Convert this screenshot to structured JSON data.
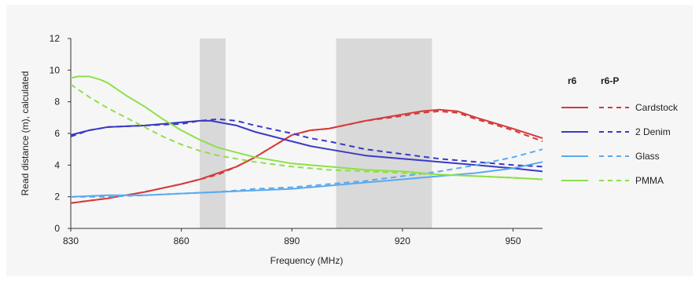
{
  "chart_data": {
    "type": "line",
    "title": "",
    "xlabel": "Frequency (MHz)",
    "ylabel": "Read distance (m), calculated",
    "xlim": [
      830,
      958
    ],
    "ylim": [
      0,
      12
    ],
    "xticks": [
      830,
      860,
      890,
      920,
      950
    ],
    "yticks": [
      0,
      2,
      4,
      6,
      8,
      10,
      12
    ],
    "grid": false,
    "shaded_bands": [
      [
        865,
        872
      ],
      [
        902,
        928
      ]
    ],
    "legend": {
      "placement": "right",
      "solid_header": "r6",
      "dashed_header": "r6-P"
    },
    "series": [
      {
        "name": "Cardstock",
        "color": "#d63a3a",
        "r6": {
          "x": [
            830,
            840,
            850,
            860,
            865,
            870,
            875,
            880,
            885,
            890,
            895,
            900,
            910,
            920,
            925,
            930,
            935,
            940,
            950,
            958
          ],
          "y": [
            1.6,
            1.9,
            2.3,
            2.8,
            3.1,
            3.5,
            3.9,
            4.5,
            5.2,
            5.9,
            6.2,
            6.3,
            6.8,
            7.2,
            7.4,
            7.5,
            7.4,
            7.0,
            6.3,
            5.7
          ]
        },
        "r6_P": {
          "x": [
            830,
            840,
            850,
            860,
            865,
            870,
            875,
            880,
            885,
            890,
            895,
            900,
            910,
            920,
            925,
            930,
            935,
            940,
            950,
            958
          ],
          "y": [
            1.6,
            1.9,
            2.3,
            2.8,
            3.1,
            3.4,
            3.9,
            4.5,
            5.2,
            5.9,
            6.2,
            6.3,
            6.8,
            7.1,
            7.3,
            7.4,
            7.3,
            6.9,
            6.2,
            5.5
          ]
        }
      },
      {
        "name": "2 Denim",
        "color": "#3a3ac6",
        "r6": {
          "x": [
            830,
            835,
            840,
            850,
            860,
            865,
            868,
            875,
            880,
            890,
            895,
            900,
            910,
            920,
            930,
            940,
            950,
            958
          ],
          "y": [
            5.9,
            6.2,
            6.4,
            6.5,
            6.7,
            6.8,
            6.8,
            6.5,
            6.1,
            5.5,
            5.2,
            5.0,
            4.6,
            4.4,
            4.2,
            4.0,
            3.8,
            3.6
          ]
        },
        "r6_P": {
          "x": [
            830,
            835,
            840,
            850,
            860,
            865,
            870,
            875,
            880,
            890,
            895,
            900,
            910,
            920,
            930,
            940,
            950,
            958
          ],
          "y": [
            5.8,
            6.2,
            6.4,
            6.5,
            6.6,
            6.8,
            6.9,
            6.8,
            6.5,
            6.0,
            5.7,
            5.5,
            5.0,
            4.7,
            4.4,
            4.2,
            4.0,
            3.9
          ]
        }
      },
      {
        "name": "Glass",
        "color": "#5aaaf0",
        "r6": {
          "x": [
            830,
            840,
            850,
            860,
            870,
            880,
            890,
            900,
            910,
            920,
            930,
            940,
            950,
            958
          ],
          "y": [
            2.0,
            2.1,
            2.1,
            2.2,
            2.3,
            2.4,
            2.5,
            2.7,
            2.9,
            3.1,
            3.3,
            3.5,
            3.8,
            4.2
          ]
        },
        "r6_P": {
          "x": [
            830,
            840,
            850,
            860,
            870,
            880,
            890,
            900,
            910,
            920,
            930,
            940,
            950,
            958
          ],
          "y": [
            2.0,
            2.0,
            2.1,
            2.2,
            2.3,
            2.5,
            2.6,
            2.8,
            3.0,
            3.3,
            3.6,
            4.0,
            4.5,
            5.0
          ]
        }
      },
      {
        "name": "PMMA",
        "color": "#8ee048",
        "r6": {
          "x": [
            830,
            832,
            835,
            838,
            840,
            845,
            850,
            855,
            860,
            865,
            870,
            880,
            890,
            900,
            910,
            920,
            930,
            940,
            950,
            958
          ],
          "y": [
            9.5,
            9.6,
            9.6,
            9.4,
            9.2,
            8.4,
            7.7,
            6.9,
            6.2,
            5.6,
            5.1,
            4.5,
            4.1,
            3.9,
            3.7,
            3.6,
            3.4,
            3.3,
            3.2,
            3.1
          ]
        },
        "r6_P": {
          "x": [
            830,
            835,
            840,
            845,
            850,
            855,
            860,
            865,
            870,
            880,
            890,
            900,
            910,
            920,
            930,
            940,
            950,
            958
          ],
          "y": [
            9.1,
            8.3,
            7.6,
            7.0,
            6.4,
            5.8,
            5.3,
            4.9,
            4.6,
            4.2,
            3.9,
            3.7,
            3.6,
            3.5,
            3.4,
            3.3,
            3.2,
            3.1
          ]
        }
      }
    ]
  }
}
